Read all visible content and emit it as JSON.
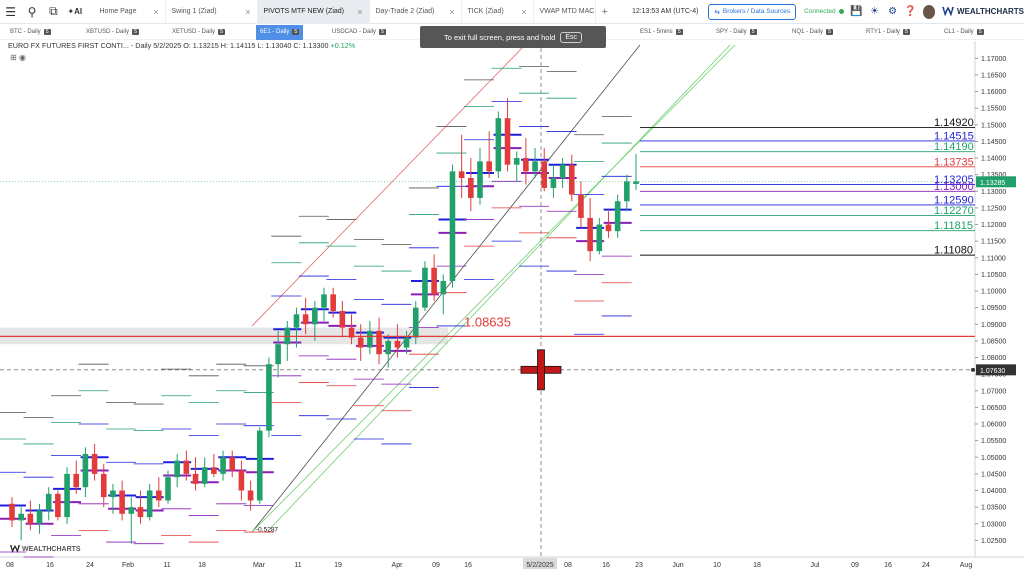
{
  "topbar": {
    "tabs": [
      {
        "label": "Home Page",
        "active": false
      },
      {
        "label": "Swing 1 (Ziad)",
        "active": false
      },
      {
        "label": "PIVOTS MTF NEW (Ziad)",
        "active": true
      },
      {
        "label": "Day-Trade 2 (Ziad)",
        "active": false
      },
      {
        "label": "TICK (Ziad)",
        "active": false
      },
      {
        "label": "VWAP MTD MAC",
        "active": false
      }
    ],
    "clock": "12:13:53 AM  (UTC-4)",
    "broker_button": "Brokers / Data Sources",
    "connection_status": "Connected",
    "brand": "WEALTHCHARTS",
    "icons": [
      "menu-icon",
      "search-icon",
      "copy-icon",
      "ai-icon",
      "plus-icon",
      "save-icon",
      "bell-icon",
      "gear-icon",
      "help-icon"
    ]
  },
  "symbols": [
    {
      "label": "BTC - Daily",
      "count": "5",
      "active": false
    },
    {
      "label": "XBTUSD - Daily",
      "count": "5",
      "active": false
    },
    {
      "label": "XETUSD - Daily",
      "count": "5",
      "active": false
    },
    {
      "label": "6E1 - Daily",
      "count": "5",
      "active": true
    },
    {
      "label": "USDCAD - Daily",
      "count": "5",
      "active": false
    },
    {
      "label": "ES1 - 5mins",
      "count": "5",
      "active": false
    },
    {
      "label": "SPY - Daily",
      "count": "5",
      "active": false
    },
    {
      "label": "NQ1 - Daily",
      "count": "5",
      "active": false
    },
    {
      "label": "RTY1 - Daily",
      "count": "5",
      "active": false
    },
    {
      "label": "CL1 - Daily",
      "count": "5",
      "active": false
    }
  ],
  "toast": {
    "text": "To exit full screen, press and hold",
    "key": "Esc"
  },
  "chart": {
    "info_title": "EURO FX FUTURES FIRST CONTI... - Daily",
    "info_ohlc": " 5/2/2025 O: 1.13215 H: 1.14115 L: 1.13040 C: 1.13300",
    "info_change": " +0.12%",
    "watermark": "WEALTHCHARTS",
    "colors": {
      "up": "#22a06b",
      "down": "#e23b3b",
      "pivot_blue": "#1f1fdc",
      "pivot_purple": "#8a1fb8"
    }
  },
  "chart_data": {
    "type": "candlestick",
    "symbol": "6E1",
    "interval": "Daily",
    "y_range": [
      1.02,
      1.174
    ],
    "y_ticks": [
      "1.17000",
      "1.16500",
      "1.16000",
      "1.15500",
      "1.15000",
      "1.14500",
      "1.14000",
      "1.13500",
      "1.13000",
      "1.12500",
      "1.12000",
      "1.11500",
      "1.11000",
      "1.10500",
      "1.10000",
      "1.09500",
      "1.09000",
      "1.08500",
      "1.08000",
      "1.07500",
      "1.07000",
      "1.06500",
      "1.06000",
      "1.05500",
      "1.05000",
      "1.04500",
      "1.04000",
      "1.03500",
      "1.03000",
      "1.02500"
    ],
    "x_ticks": [
      "08",
      "16",
      "24",
      "Feb",
      "11",
      "18",
      "Mar",
      "11",
      "19",
      "Apr",
      "09",
      "16",
      "5/2/2025",
      "08",
      "16",
      "23",
      "Jun",
      "10",
      "18",
      "Jul",
      "09",
      "16",
      "24",
      "Aug"
    ],
    "cursor_date": "5/2/2025",
    "last_price_label": "1.13285",
    "crosshair_price_label": "1.07630",
    "levels": [
      {
        "value": "1.14920",
        "color": "#111111"
      },
      {
        "value": "1.14515",
        "color": "#1f1fdc"
      },
      {
        "value": "1.14190",
        "color": "#22a06b"
      },
      {
        "value": "1.13735",
        "color": "#e23b3b"
      },
      {
        "value": "1.13205",
        "color": "#1f1fdc"
      },
      {
        "value": "1.13000",
        "color": "#8a1fb8"
      },
      {
        "value": "1.12590",
        "color": "#1f1fdc"
      },
      {
        "value": "1.12270",
        "color": "#22a06b"
      },
      {
        "value": "1.11815",
        "color": "#22a06b"
      },
      {
        "value": "1.11080",
        "color": "#111111"
      }
    ],
    "annotations": [
      {
        "text": "1.08635",
        "price": 1.08635,
        "color": "#e23b3b"
      },
      {
        "text": "-0.5287",
        "price": 1.0285,
        "color": "#111111"
      }
    ],
    "candles": [
      [
        1.036,
        1.038,
        1.029,
        1.031
      ],
      [
        1.031,
        1.035,
        1.025,
        1.033
      ],
      [
        1.033,
        1.037,
        1.028,
        1.03
      ],
      [
        1.03,
        1.036,
        1.027,
        1.034
      ],
      [
        1.034,
        1.041,
        1.031,
        1.039
      ],
      [
        1.039,
        1.04,
        1.031,
        1.032
      ],
      [
        1.032,
        1.047,
        1.03,
        1.045
      ],
      [
        1.045,
        1.049,
        1.039,
        1.041
      ],
      [
        1.041,
        1.053,
        1.038,
        1.051
      ],
      [
        1.051,
        1.054,
        1.043,
        1.045
      ],
      [
        1.045,
        1.048,
        1.035,
        1.038
      ],
      [
        1.038,
        1.042,
        1.033,
        1.04
      ],
      [
        1.04,
        1.043,
        1.031,
        1.033
      ],
      [
        1.033,
        1.038,
        1.024,
        1.035
      ],
      [
        1.035,
        1.04,
        1.03,
        1.032
      ],
      [
        1.032,
        1.042,
        1.031,
        1.04
      ],
      [
        1.04,
        1.044,
        1.035,
        1.037
      ],
      [
        1.037,
        1.046,
        1.036,
        1.044
      ],
      [
        1.044,
        1.051,
        1.041,
        1.049
      ],
      [
        1.049,
        1.052,
        1.043,
        1.045
      ],
      [
        1.045,
        1.05,
        1.04,
        1.042
      ],
      [
        1.042,
        1.05,
        1.041,
        1.047
      ],
      [
        1.047,
        1.051,
        1.044,
        1.045
      ],
      [
        1.045,
        1.052,
        1.043,
        1.05
      ],
      [
        1.05,
        1.052,
        1.044,
        1.046
      ],
      [
        1.046,
        1.049,
        1.037,
        1.04
      ],
      [
        1.04,
        1.043,
        1.034,
        1.037
      ],
      [
        1.037,
        1.059,
        1.036,
        1.058
      ],
      [
        1.058,
        1.08,
        1.056,
        1.078
      ],
      [
        1.078,
        1.088,
        1.074,
        1.084
      ],
      [
        1.084,
        1.091,
        1.079,
        1.089
      ],
      [
        1.089,
        1.095,
        1.083,
        1.093
      ],
      [
        1.093,
        1.098,
        1.087,
        1.09
      ],
      [
        1.09,
        1.097,
        1.085,
        1.095
      ],
      [
        1.095,
        1.101,
        1.091,
        1.099
      ],
      [
        1.099,
        1.101,
        1.092,
        1.094
      ],
      [
        1.094,
        1.097,
        1.086,
        1.089
      ],
      [
        1.089,
        1.093,
        1.084,
        1.086
      ],
      [
        1.086,
        1.09,
        1.079,
        1.083
      ],
      [
        1.083,
        1.091,
        1.081,
        1.088
      ],
      [
        1.088,
        1.092,
        1.078,
        1.081
      ],
      [
        1.081,
        1.087,
        1.077,
        1.085
      ],
      [
        1.085,
        1.09,
        1.08,
        1.083
      ],
      [
        1.083,
        1.088,
        1.081,
        1.086
      ],
      [
        1.086,
        1.097,
        1.084,
        1.095
      ],
      [
        1.095,
        1.109,
        1.094,
        1.107
      ],
      [
        1.107,
        1.111,
        1.097,
        1.099
      ],
      [
        1.099,
        1.105,
        1.093,
        1.103
      ],
      [
        1.103,
        1.138,
        1.101,
        1.136
      ],
      [
        1.136,
        1.147,
        1.128,
        1.134
      ],
      [
        1.134,
        1.14,
        1.124,
        1.128
      ],
      [
        1.128,
        1.143,
        1.126,
        1.139
      ],
      [
        1.139,
        1.148,
        1.134,
        1.136
      ],
      [
        1.136,
        1.154,
        1.134,
        1.152
      ],
      [
        1.152,
        1.158,
        1.136,
        1.138
      ],
      [
        1.138,
        1.142,
        1.133,
        1.14
      ],
      [
        1.14,
        1.146,
        1.132,
        1.136
      ],
      [
        1.136,
        1.143,
        1.134,
        1.139
      ],
      [
        1.139,
        1.143,
        1.13,
        1.131
      ],
      [
        1.131,
        1.138,
        1.128,
        1.134
      ],
      [
        1.134,
        1.14,
        1.131,
        1.138
      ],
      [
        1.138,
        1.141,
        1.127,
        1.129
      ],
      [
        1.129,
        1.133,
        1.119,
        1.122
      ],
      [
        1.122,
        1.128,
        1.109,
        1.112
      ],
      [
        1.112,
        1.122,
        1.111,
        1.12
      ],
      [
        1.12,
        1.124,
        1.116,
        1.118
      ],
      [
        1.118,
        1.129,
        1.116,
        1.127
      ],
      [
        1.127,
        1.135,
        1.124,
        1.133
      ],
      [
        1.1322,
        1.1412,
        1.1304,
        1.133
      ]
    ]
  }
}
